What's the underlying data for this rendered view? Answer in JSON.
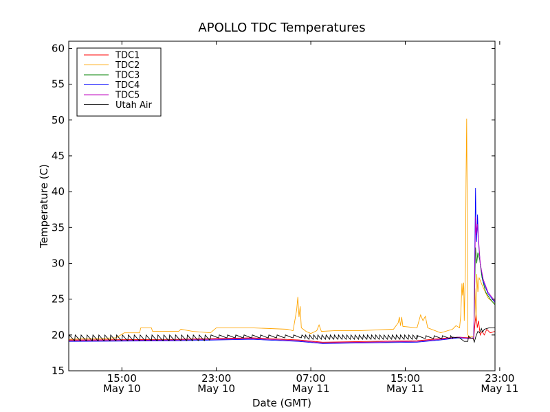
{
  "chart_data": {
    "type": "line",
    "title": "APOLLO TDC Temperatures",
    "xlabel": "Date (GMT)",
    "ylabel": "Temperature (C)",
    "xlim": [
      10.5,
      46.6
    ],
    "ylim": [
      15,
      61
    ],
    "yticks": [
      15,
      20,
      25,
      30,
      35,
      40,
      45,
      50,
      55,
      60
    ],
    "xticks": [
      {
        "x": 15,
        "time": "15:00",
        "date": "May 10"
      },
      {
        "x": 23,
        "time": "23:00",
        "date": "May 10"
      },
      {
        "x": 31,
        "time": "07:00",
        "date": "May 11"
      },
      {
        "x": 39,
        "time": "15:00",
        "date": "May 11"
      },
      {
        "x": 47,
        "time": "23:00",
        "date": "May 11"
      }
    ],
    "legend_position": "top-left",
    "series": [
      {
        "name": "TDC1",
        "color": "#ff0000",
        "points": [
          [
            10.5,
            19.3
          ],
          [
            20,
            19.4
          ],
          [
            26,
            19.6
          ],
          [
            30,
            19.3
          ],
          [
            32,
            19.0
          ],
          [
            36,
            19.1
          ],
          [
            40,
            19.2
          ],
          [
            42,
            19.5
          ],
          [
            43.5,
            19.7
          ],
          [
            44.4,
            19.6
          ],
          [
            44.8,
            19.5
          ],
          [
            44.9,
            21.5
          ],
          [
            45.0,
            23.0
          ],
          [
            45.1,
            21.0
          ],
          [
            45.2,
            22.0
          ],
          [
            45.35,
            20.0
          ],
          [
            45.5,
            20.5
          ],
          [
            45.7,
            20.0
          ],
          [
            45.9,
            20.8
          ],
          [
            46.2,
            20.3
          ],
          [
            46.6,
            20.5
          ]
        ]
      },
      {
        "name": "TDC2",
        "color": "#ffa500",
        "points": [
          [
            10.5,
            19.4
          ],
          [
            14.5,
            19.6
          ],
          [
            15.2,
            20.3
          ],
          [
            16.5,
            20.3
          ],
          [
            16.6,
            21.0
          ],
          [
            17.5,
            21.0
          ],
          [
            17.6,
            20.5
          ],
          [
            19.8,
            20.5
          ],
          [
            20,
            20.8
          ],
          [
            21,
            20.5
          ],
          [
            22.5,
            20.3
          ],
          [
            23,
            21.0
          ],
          [
            26,
            21.0
          ],
          [
            29,
            20.8
          ],
          [
            29.5,
            20.6
          ],
          [
            29.8,
            23.5
          ],
          [
            29.9,
            25.3
          ],
          [
            30.0,
            22.5
          ],
          [
            30.1,
            24.0
          ],
          [
            30.2,
            21.0
          ],
          [
            30.6,
            20.5
          ],
          [
            31,
            20.2
          ],
          [
            31.5,
            20.6
          ],
          [
            31.7,
            21.4
          ],
          [
            31.9,
            20.5
          ],
          [
            33,
            20.6
          ],
          [
            35,
            20.6
          ],
          [
            38,
            20.8
          ],
          [
            38.4,
            21.7
          ],
          [
            38.5,
            22.5
          ],
          [
            38.6,
            21.3
          ],
          [
            38.7,
            22.5
          ],
          [
            38.8,
            21.2
          ],
          [
            40,
            21.0
          ],
          [
            40.3,
            22.8
          ],
          [
            40.5,
            22.0
          ],
          [
            40.7,
            22.6
          ],
          [
            40.9,
            21.0
          ],
          [
            42,
            20.3
          ],
          [
            43,
            20.8
          ],
          [
            43.3,
            21.3
          ],
          [
            43.6,
            21.0
          ],
          [
            43.7,
            22.8
          ],
          [
            43.8,
            27.2
          ],
          [
            43.85,
            25.5
          ],
          [
            43.95,
            27.3
          ],
          [
            44.0,
            22.0
          ],
          [
            44.1,
            30.0
          ],
          [
            44.15,
            42.0
          ],
          [
            44.2,
            50.2
          ],
          [
            44.25,
            38.0
          ],
          [
            44.3,
            20.0
          ],
          [
            44.5,
            19.7
          ],
          [
            44.8,
            19.8
          ],
          [
            44.9,
            26.5
          ],
          [
            45.0,
            22.0
          ],
          [
            45.05,
            28.5
          ],
          [
            45.15,
            26.0
          ],
          [
            45.25,
            28.0
          ],
          [
            45.5,
            27.0
          ],
          [
            46.0,
            25.2
          ],
          [
            46.6,
            24.3
          ]
        ]
      },
      {
        "name": "TDC3",
        "color": "#008000",
        "points": [
          [
            10.5,
            19.2
          ],
          [
            20,
            19.3
          ],
          [
            26,
            19.5
          ],
          [
            30,
            19.2
          ],
          [
            32,
            18.9
          ],
          [
            36,
            19.0
          ],
          [
            40,
            19.1
          ],
          [
            42,
            19.4
          ],
          [
            43.5,
            19.7
          ],
          [
            44.4,
            19.5
          ],
          [
            44.8,
            19.6
          ],
          [
            44.9,
            28.0
          ],
          [
            44.95,
            32.2
          ],
          [
            45.05,
            30.0
          ],
          [
            45.15,
            31.5
          ],
          [
            45.3,
            30.5
          ],
          [
            45.5,
            28.0
          ],
          [
            45.8,
            26.0
          ],
          [
            46.2,
            25.0
          ],
          [
            46.6,
            24.2
          ]
        ]
      },
      {
        "name": "TDC4",
        "color": "#0000ff",
        "points": [
          [
            10.5,
            19.1
          ],
          [
            20,
            19.2
          ],
          [
            26,
            19.4
          ],
          [
            30,
            19.1
          ],
          [
            32,
            18.8
          ],
          [
            36,
            18.9
          ],
          [
            40,
            19.0
          ],
          [
            42,
            19.3
          ],
          [
            43.5,
            19.6
          ],
          [
            44.4,
            19.5
          ],
          [
            44.8,
            19.6
          ],
          [
            44.9,
            33.0
          ],
          [
            44.95,
            40.5
          ],
          [
            45.0,
            35.0
          ],
          [
            45.05,
            33.0
          ],
          [
            45.12,
            36.8
          ],
          [
            45.2,
            33.0
          ],
          [
            45.35,
            30.0
          ],
          [
            45.6,
            27.5
          ],
          [
            46.0,
            25.8
          ],
          [
            46.6,
            24.5
          ]
        ]
      },
      {
        "name": "TDC5",
        "color": "#bf00bf",
        "points": [
          [
            10.5,
            19.2
          ],
          [
            20,
            19.3
          ],
          [
            26,
            19.5
          ],
          [
            30,
            19.2
          ],
          [
            32,
            18.9
          ],
          [
            36,
            19.0
          ],
          [
            40,
            19.1
          ],
          [
            42,
            19.4
          ],
          [
            43.5,
            19.7
          ],
          [
            44.4,
            19.5
          ],
          [
            44.8,
            19.6
          ],
          [
            44.9,
            30.0
          ],
          [
            44.95,
            36.5
          ],
          [
            45.0,
            34.0
          ],
          [
            45.1,
            35.5
          ],
          [
            45.2,
            33.5
          ],
          [
            45.35,
            30.0
          ],
          [
            45.6,
            27.8
          ],
          [
            46.0,
            26.0
          ],
          [
            46.6,
            24.7
          ]
        ]
      },
      {
        "name": "Utah Air",
        "color": "#000000",
        "sawtooth": {
          "start": 10.5,
          "end": 43.0,
          "segments": [
            {
              "from": 10.5,
              "to": 22.5,
              "period": 0.5,
              "low": 19.2,
              "high": 20.0
            },
            {
              "from": 22.5,
              "to": 30.5,
              "period": 0.7,
              "low": 19.6,
              "high": 20.0
            },
            {
              "from": 30.5,
              "to": 40.0,
              "period": 0.35,
              "low": 19.4,
              "high": 20.0
            },
            {
              "from": 40.0,
              "to": 43.0,
              "period": 0.7,
              "low": 19.5,
              "high": 19.9
            }
          ]
        },
        "points": [
          [
            43.0,
            19.7
          ],
          [
            43.6,
            19.6
          ],
          [
            44.0,
            19.1
          ],
          [
            44.3,
            19.1
          ],
          [
            44.35,
            19.8
          ],
          [
            44.5,
            19.6
          ],
          [
            44.75,
            19.5
          ],
          [
            44.85,
            19.0
          ],
          [
            45.0,
            19.9
          ],
          [
            45.15,
            20.5
          ],
          [
            45.3,
            20.3
          ],
          [
            45.45,
            20.9
          ],
          [
            45.55,
            20.4
          ],
          [
            45.7,
            20.8
          ],
          [
            46.1,
            21.0
          ],
          [
            46.6,
            21.0
          ]
        ]
      }
    ]
  }
}
